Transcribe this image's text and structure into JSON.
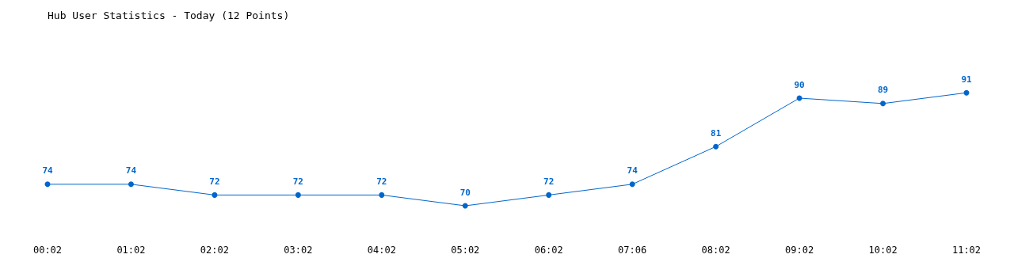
{
  "chart_data": {
    "type": "line",
    "title": "Hub User Statistics - Today (12 Points)",
    "categories": [
      "00:02",
      "01:02",
      "02:02",
      "03:02",
      "04:02",
      "05:02",
      "06:02",
      "07:06",
      "08:02",
      "09:02",
      "10:02",
      "11:02"
    ],
    "series": [
      {
        "color": "#0066cc",
        "values": [
          74,
          74,
          72,
          72,
          72,
          70,
          72,
          74,
          81,
          90,
          89,
          91
        ]
      }
    ],
    "data_labels": true,
    "marker": "circle",
    "line_style": "solid"
  }
}
